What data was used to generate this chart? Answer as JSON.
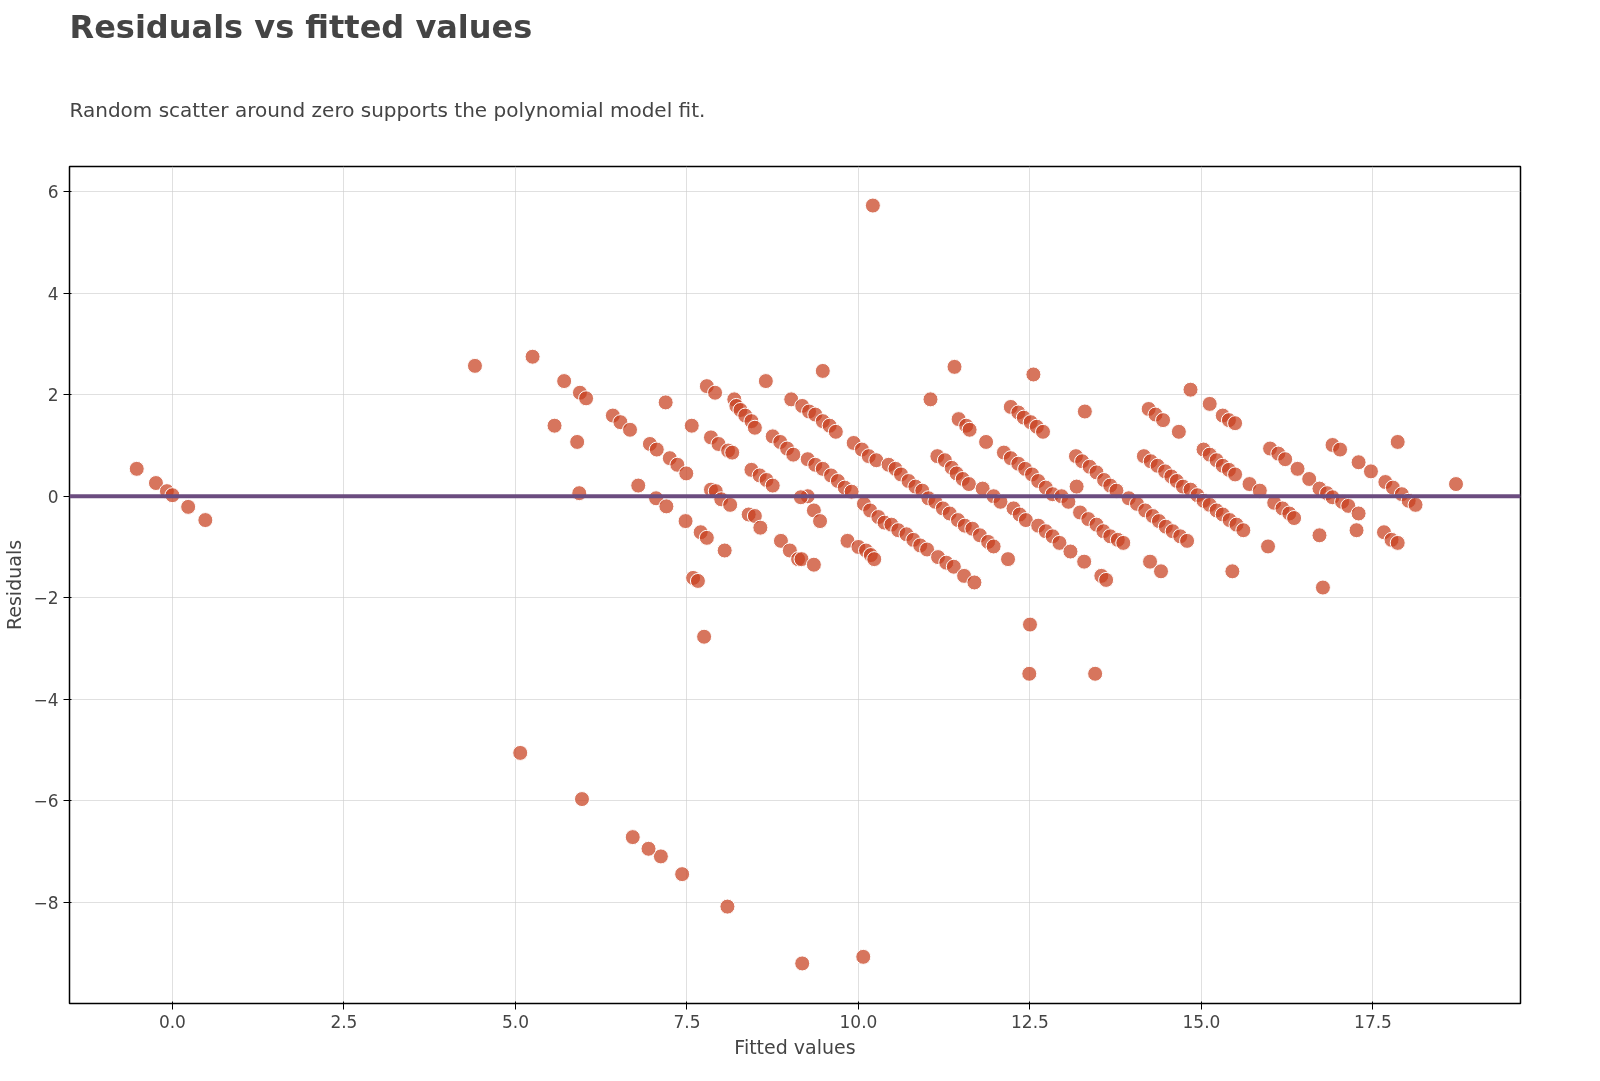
{
  "chart_data": {
    "type": "scatter",
    "title": "Residuals vs fitted values",
    "subtitle": "Random scatter around zero supports the polynomial model fit.",
    "xlabel": "Fitted values",
    "ylabel": "Residuals",
    "xlim": [
      -1.5,
      19.65
    ],
    "ylim": [
      -10.0,
      6.5
    ],
    "xticks": [
      {
        "value": 0,
        "label": "0.0"
      },
      {
        "value": 2.5,
        "label": "2.5"
      },
      {
        "value": 5,
        "label": "5.0"
      },
      {
        "value": 7.5,
        "label": "7.5"
      },
      {
        "value": 10,
        "label": "10.0"
      },
      {
        "value": 12.5,
        "label": "12.5"
      },
      {
        "value": 15,
        "label": "15.0"
      },
      {
        "value": 17.5,
        "label": "17.5"
      }
    ],
    "yticks": [
      {
        "value": -8,
        "label": "−8"
      },
      {
        "value": -6,
        "label": "−6"
      },
      {
        "value": -4,
        "label": "−4"
      },
      {
        "value": -2,
        "label": "−2"
      },
      0,
      2,
      4,
      6
    ],
    "grid": true,
    "marker": "circle",
    "ref_lines": [
      {
        "axis": "y",
        "value": 0,
        "color": "#6b4c7f"
      }
    ],
    "series": [
      {
        "color": "#c8401f",
        "x": [
          -0.52,
          -0.24,
          -0.08,
          0,
          0.23,
          0.48,
          4.41,
          5.25,
          5.71,
          5.94,
          6.03,
          5.57,
          5.9,
          5.93,
          6.42,
          6.53,
          6.67,
          6.79,
          6.96,
          7.06,
          7.05,
          7.19,
          7.2,
          7.25,
          7.36,
          7.49,
          7.48,
          7.57,
          7.59,
          7.66,
          7.7,
          7.75,
          7.79,
          7.79,
          7.85,
          7.91,
          7.85,
          7.92,
          7.96,
          8.0,
          8.05,
          8.1,
          8.16,
          8.13,
          8.19,
          8.22,
          8.28,
          8.35,
          8.4,
          8.44,
          8.49,
          8.49,
          8.57,
          8.65,
          8.44,
          8.56,
          8.66,
          8.75,
          8.75,
          8.86,
          8.96,
          9.05,
          9.02,
          8.87,
          9.0,
          9.12,
          9.18,
          9.28,
          9.37,
          9.26,
          9.35,
          9.17,
          9.35,
          9.16,
          9.48,
          9.44,
          9.48,
          9.58,
          9.67,
          9.26,
          9.37,
          9.48,
          9.6,
          9.7,
          9.8,
          9.9,
          9.84,
          10.0,
          10.11,
          10.18,
          10.23,
          10.21,
          10.07,
          9.18,
          8.09,
          7.43,
          7.12,
          6.94,
          6.71,
          5.97,
          5.07,
          9.93,
          10.05,
          10.15,
          10.26,
          10.08,
          10.17,
          10.29,
          10.38,
          10.44,
          10.54,
          10.62,
          10.73,
          10.83,
          10.93,
          11.02,
          11.05,
          10.48,
          10.58,
          10.7,
          10.8,
          10.9,
          11.0,
          11.12,
          11.23,
          11.15,
          11.26,
          11.36,
          11.43,
          11.52,
          11.61,
          11.4,
          11.46,
          11.57,
          11.62,
          11.16,
          11.28,
          11.39,
          11.33,
          11.45,
          11.55,
          11.66,
          11.77,
          11.89,
          11.97,
          11.54,
          11.69,
          11.86,
          11.81,
          11.97,
          12.07,
          12.12,
          12.22,
          12.33,
          12.43,
          12.53,
          12.18,
          12.26,
          12.35,
          12.44,
          12.22,
          12.33,
          12.41,
          12.51,
          12.6,
          12.69,
          12.55,
          12.5,
          12.49,
          12.62,
          12.73,
          12.83,
          12.62,
          12.73,
          12.83,
          12.93,
          12.96,
          13.06,
          13.09,
          13.18,
          13.17,
          13.26,
          13.37,
          13.3,
          13.23,
          13.35,
          13.29,
          13.45,
          13.47,
          13.58,
          13.67,
          13.76,
          13.47,
          13.57,
          13.67,
          13.78,
          13.86,
          13.54,
          13.61,
          13.94,
          14.06,
          14.16,
          14.26,
          14.36,
          14.47,
          14.56,
          14.64,
          14.73,
          14.23,
          14.33,
          14.44,
          14.67,
          14.84,
          14.18,
          14.29,
          14.38,
          14.48,
          14.58,
          14.69,
          14.79,
          14.25,
          14.41,
          14.84,
          14.94,
          15.03,
          15.12,
          15.22,
          15.03,
          15.12,
          15.22,
          15.31,
          15.4,
          15.49,
          15.12,
          15.31,
          15.4,
          15.49,
          15.31,
          15.41,
          15.51,
          15.61,
          15.45,
          15.7,
          15.85,
          15.97,
          16.0,
          16.12,
          16.22,
          16.06,
          16.18,
          16.28,
          16.35,
          16.4,
          16.57,
          16.72,
          16.83,
          16.91,
          16.72,
          16.77,
          16.91,
          17.02,
          17.05,
          17.14,
          17.29,
          17.29,
          17.47,
          17.26,
          17.68,
          17.79,
          17.92,
          18.02,
          18.12,
          17.86,
          17.66,
          17.77,
          17.86,
          18.71
        ],
        "values": [
          0.54,
          0.26,
          0.1,
          0.02,
          -0.21,
          -0.47,
          2.57,
          2.75,
          2.27,
          2.04,
          1.93,
          1.39,
          1.07,
          0.06,
          1.59,
          1.46,
          1.31,
          0.21,
          1.03,
          0.92,
          -0.04,
          1.85,
          -0.2,
          0.75,
          0.62,
          0.45,
          -0.49,
          1.39,
          -1.61,
          -1.67,
          -0.71,
          -2.77,
          2.17,
          -0.82,
          1.16,
          2.04,
          0.13,
          0.1,
          1.03,
          -0.06,
          -1.07,
          0.9,
          0.86,
          -0.17,
          1.91,
          1.78,
          1.7,
          1.59,
          -0.36,
          1.48,
          1.35,
          -0.39,
          -0.62,
          2.27,
          0.52,
          0.41,
          0.32,
          0.21,
          1.18,
          1.07,
          0.94,
          0.82,
          1.91,
          -0.88,
          -1.07,
          -1.24,
          1.78,
          1.67,
          1.61,
          0,
          -0.28,
          -1.24,
          -1.35,
          -0.02,
          2.47,
          -0.49,
          1.48,
          1.39,
          1.27,
          0.73,
          0.62,
          0.54,
          0.41,
          0.3,
          0.17,
          0.09,
          -0.88,
          -1.0,
          -1.07,
          -1.16,
          -1.24,
          5.73,
          -9.08,
          -9.21,
          -8.09,
          -7.45,
          -7.1,
          -6.95,
          -6.72,
          -5.97,
          -5.06,
          1.05,
          0.92,
          0.79,
          0.71,
          -0.15,
          -0.28,
          -0.41,
          -0.52,
          0.62,
          0.54,
          0.43,
          0.3,
          0.19,
          0.11,
          -0.04,
          1.91,
          -0.56,
          -0.67,
          -0.75,
          -0.86,
          -0.97,
          -1.05,
          -0.11,
          -0.24,
          0.79,
          0.71,
          0.56,
          0.45,
          0.34,
          0.24,
          2.55,
          1.52,
          1.39,
          1.31,
          -1.2,
          -1.31,
          -1.39,
          -0.34,
          -0.47,
          -0.58,
          -0.64,
          -0.77,
          -0.9,
          -0.99,
          -1.57,
          -1.7,
          1.07,
          0.15,
          0,
          -0.11,
          0.86,
          0.75,
          0.64,
          0.54,
          0.43,
          -1.24,
          -0.24,
          -0.36,
          -0.47,
          1.76,
          1.65,
          1.55,
          1.46,
          1.37,
          1.27,
          2.4,
          -2.53,
          -3.5,
          0.3,
          0.17,
          0.04,
          -0.58,
          -0.69,
          -0.79,
          -0.92,
          0,
          -0.11,
          -1.09,
          0.19,
          0.79,
          0.69,
          0.58,
          1.67,
          -0.32,
          -0.45,
          -1.29,
          -3.5,
          0.47,
          0.32,
          0.21,
          0.11,
          -0.56,
          -0.69,
          -0.79,
          -0.86,
          -0.92,
          -1.57,
          -1.65,
          -0.04,
          -0.15,
          0.79,
          0.69,
          0.6,
          0.49,
          0.39,
          0.3,
          0.19,
          1.72,
          1.61,
          1.5,
          1.27,
          2.1,
          -0.28,
          -0.39,
          -0.49,
          -0.6,
          -0.69,
          -0.79,
          -0.88,
          -1.29,
          -1.48,
          0.13,
          0.02,
          -0.09,
          -0.17,
          -0.28,
          0.92,
          0.82,
          0.71,
          0.6,
          0.52,
          0.43,
          1.82,
          1.59,
          1.5,
          1.44,
          -0.36,
          -0.47,
          -0.56,
          -0.67,
          -1.48,
          0.24,
          0.11,
          -0.99,
          0.94,
          0.84,
          0.73,
          -0.13,
          -0.24,
          -0.34,
          -0.43,
          0.54,
          0.34,
          0.15,
          0.06,
          -0.02,
          -0.77,
          -1.8,
          1.01,
          0.92,
          -0.11,
          -0.19,
          -0.34,
          0.67,
          0.49,
          -0.67,
          0.28,
          0.17,
          0.04,
          -0.09,
          -0.17,
          1.07,
          -0.71,
          -0.86,
          -0.92,
          0.24
        ]
      }
    ]
  }
}
